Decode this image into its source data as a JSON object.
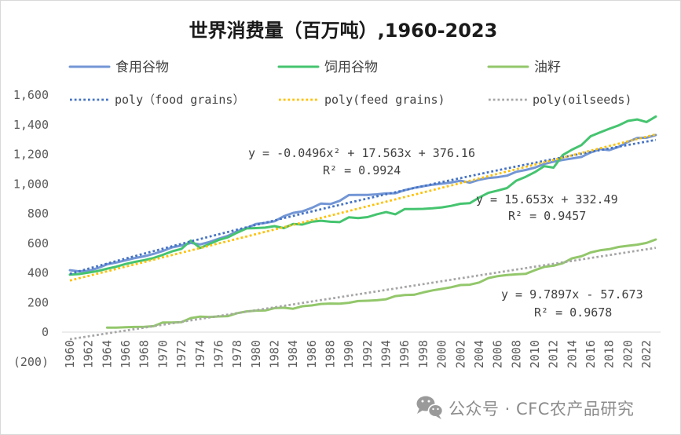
{
  "chart_data": {
    "type": "line",
    "title": "世界消费量（百万吨）,1960-2023",
    "xlabel": "",
    "ylabel": "",
    "ylim": [
      -200,
      1600
    ],
    "grid": false,
    "legend_position": "top",
    "x": [
      1960,
      1961,
      1962,
      1963,
      1964,
      1965,
      1966,
      1967,
      1968,
      1969,
      1970,
      1971,
      1972,
      1973,
      1974,
      1975,
      1976,
      1977,
      1978,
      1979,
      1980,
      1981,
      1982,
      1983,
      1984,
      1985,
      1986,
      1987,
      1988,
      1989,
      1990,
      1991,
      1992,
      1993,
      1994,
      1995,
      1996,
      1997,
      1998,
      1999,
      2000,
      2001,
      2002,
      2003,
      2004,
      2005,
      2006,
      2007,
      2008,
      2009,
      2010,
      2011,
      2012,
      2013,
      2014,
      2015,
      2016,
      2017,
      2018,
      2019,
      2020,
      2021,
      2022,
      2023
    ],
    "x_tick_labels": [
      "1960",
      "1962",
      "1964",
      "1966",
      "1968",
      "1970",
      "1972",
      "1974",
      "1976",
      "1978",
      "1980",
      "1982",
      "1984",
      "1986",
      "1988",
      "1990",
      "1992",
      "1994",
      "1996",
      "1998",
      "2000",
      "2002",
      "2004",
      "2006",
      "2008",
      "2010",
      "2012",
      "2014",
      "2016",
      "2018",
      "2020",
      "2022"
    ],
    "y_ticks": [
      1600,
      1400,
      1200,
      1000,
      800,
      600,
      400,
      200,
      0,
      -200
    ],
    "y_tick_labels": [
      "1,600",
      "1,400",
      "1,200",
      "1,000",
      "800",
      "600",
      "400",
      "200",
      "0",
      "(200)"
    ],
    "negative_tick_color": "#c00000",
    "series": [
      {
        "name": "食用谷物",
        "color": "#7396d5",
        "values": [
          418,
          410,
          414,
          432,
          458,
          470,
          485,
          500,
          512,
          528,
          548,
          572,
          585,
          602,
          592,
          608,
          630,
          650,
          682,
          702,
          730,
          737,
          748,
          782,
          805,
          815,
          838,
          868,
          864,
          886,
          925,
          926,
          926,
          930,
          936,
          937,
          958,
          973,
          985,
          995,
          1002,
          1010,
          1022,
          1008,
          1028,
          1040,
          1046,
          1056,
          1082,
          1094,
          1110,
          1135,
          1150,
          1162,
          1172,
          1182,
          1212,
          1235,
          1228,
          1250,
          1283,
          1310,
          1312,
          1330
        ]
      },
      {
        "name": "饲用谷物",
        "color": "#45c46f",
        "values": [
          388,
          392,
          402,
          412,
          428,
          442,
          460,
          474,
          486,
          500,
          522,
          545,
          562,
          618,
          568,
          595,
          622,
          640,
          672,
          700,
          702,
          705,
          715,
          702,
          730,
          726,
          745,
          752,
          745,
          742,
          775,
          770,
          776,
          795,
          810,
          795,
          830,
          830,
          832,
          836,
          842,
          852,
          866,
          870,
          908,
          940,
          955,
          972,
          1022,
          1048,
          1080,
          1120,
          1110,
          1195,
          1232,
          1262,
          1322,
          1348,
          1372,
          1395,
          1425,
          1435,
          1418,
          1455
        ]
      },
      {
        "name": "油籽",
        "color": "#93c76b",
        "values": [
          null,
          null,
          null,
          null,
          30,
          30,
          33,
          35,
          36,
          40,
          65,
          65,
          68,
          95,
          105,
          102,
          106,
          108,
          128,
          140,
          145,
          146,
          162,
          165,
          158,
          175,
          180,
          190,
          193,
          192,
          198,
          210,
          212,
          215,
          222,
          243,
          250,
          252,
          268,
          282,
          292,
          303,
          318,
          320,
          335,
          365,
          378,
          385,
          390,
          393,
          418,
          440,
          448,
          465,
          498,
          512,
          538,
          552,
          560,
          575,
          583,
          590,
          602,
          625
        ]
      }
    ],
    "trendlines": [
      {
        "name": "poly（food grains）",
        "color": "#4472c4",
        "coefficients": [
          376.16,
          17.563,
          -0.0496
        ]
      },
      {
        "name": "poly(feed grains)",
        "color": "#ffc000",
        "coefficients": [
          332.49,
          15.653
        ]
      },
      {
        "name": "poly(oilseeds)",
        "color": "#a6a6a6",
        "coefficients": [
          -57.673,
          9.7897
        ]
      }
    ],
    "annotations": [
      {
        "text": "y = -0.0496x² + 17.563x + 376.16"
      },
      {
        "text": "R² = 0.9924"
      },
      {
        "text": "y = 15.653x + 332.49"
      },
      {
        "text": "R² = 0.9457"
      },
      {
        "text": "y = 9.7897x - 57.673"
      },
      {
        "text": "R² = 0.9678"
      }
    ]
  },
  "watermark": {
    "text": "公众号 · CFC农产品研究",
    "icon": "wechat-icon",
    "color": "#9a9a9a"
  }
}
